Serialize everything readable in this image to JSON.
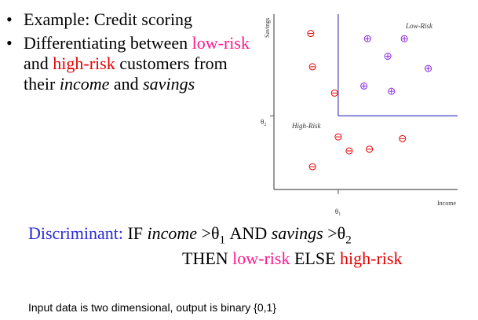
{
  "bullets": {
    "item1": "Example: Credit scoring",
    "item2_prefix": "Differentiating between",
    "low_risk": "low-risk",
    "and": "and",
    "high_risk": "high-risk",
    "customers": "customers from their",
    "income": "income",
    "and2": "and",
    "savings": "savings"
  },
  "discriminant": {
    "label": "Discriminant:",
    "if": "IF",
    "income": "income",
    "gt1": ">",
    "theta": "θ",
    "sub1": "1",
    "and": "AND",
    "savings": "savings",
    "gt2": ">",
    "sub2": "2",
    "then": "THEN",
    "low_risk": "low-risk",
    "else": "ELSE",
    "high_risk": "high-risk"
  },
  "footer": "Input data is two dimensional, output is binary {0,1}",
  "chart_data": {
    "type": "scatter",
    "xlabel": "Income",
    "ylabel": "Savings",
    "theta1_label": "θ",
    "theta1_sub": "1",
    "theta2_label": "θ",
    "theta2_sub": "2",
    "region_low": "Low-Risk",
    "region_high": "High-Risk",
    "theta1": 0.35,
    "theta2": 0.42,
    "series": [
      {
        "class": "low-risk",
        "symbol": "plus",
        "color": "#8a2be2",
        "points": [
          [
            0.51,
            0.86
          ],
          [
            0.71,
            0.86
          ],
          [
            0.62,
            0.76
          ],
          [
            0.84,
            0.69
          ],
          [
            0.49,
            0.59
          ],
          [
            0.64,
            0.56
          ]
        ]
      },
      {
        "class": "high-risk",
        "symbol": "minus",
        "color": "#e60000",
        "points": [
          [
            0.2,
            0.89
          ],
          [
            0.21,
            0.7
          ],
          [
            0.33,
            0.55
          ],
          [
            0.35,
            0.3
          ],
          [
            0.41,
            0.22
          ],
          [
            0.52,
            0.23
          ],
          [
            0.7,
            0.29
          ],
          [
            0.21,
            0.13
          ]
        ]
      }
    ]
  }
}
